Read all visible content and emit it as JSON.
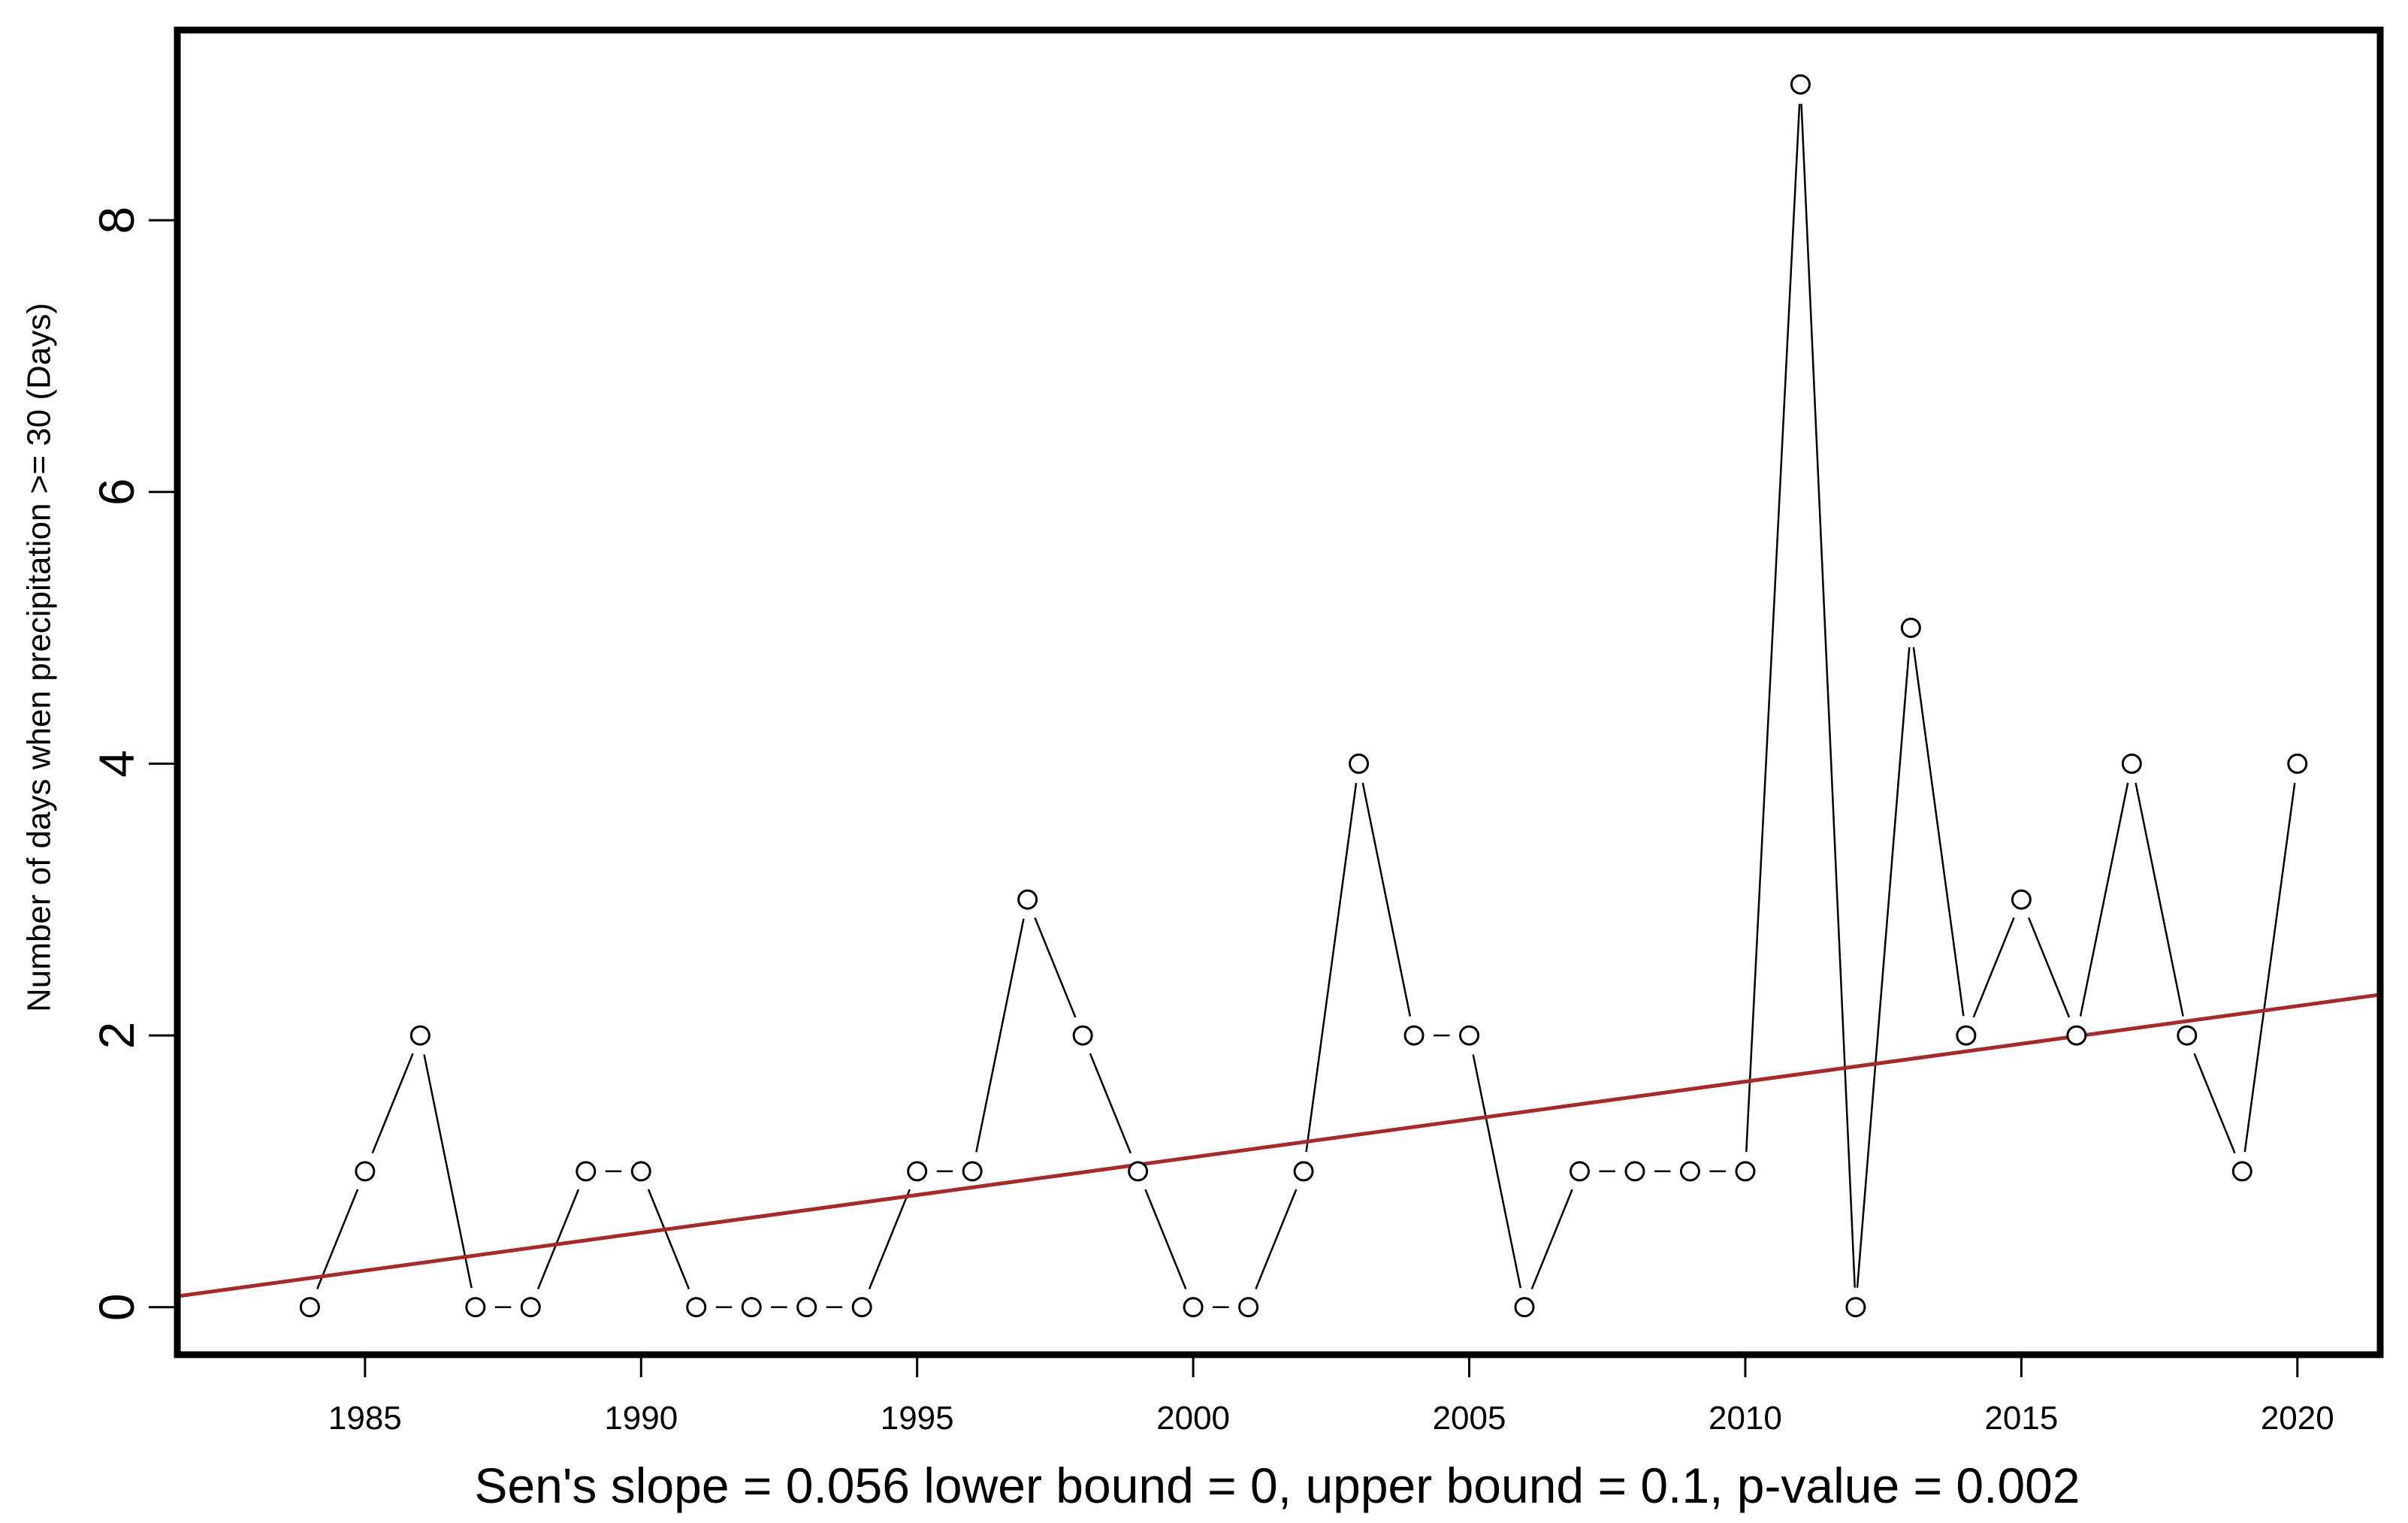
{
  "chart_data": {
    "type": "line",
    "title": "",
    "ylabel": "Number of days when precipitation >= 30  (Days)",
    "xlabel": "",
    "footer": "Sen's slope = 0.056   lower bound = 0,   upper bound = 0.1,   p-value = 0.002",
    "xlim": [
      1981.6,
      2021.5
    ],
    "ylim": [
      -0.35,
      9.4
    ],
    "x_ticks": [
      1985,
      1990,
      1995,
      2000,
      2005,
      2010,
      2015,
      2020
    ],
    "y_ticks": [
      0,
      2,
      4,
      6,
      8
    ],
    "grid": false,
    "series": [
      {
        "x": [
          1984,
          1985,
          1986,
          1987,
          1988,
          1989,
          1990,
          1991,
          1992,
          1993,
          1994,
          1995,
          1996,
          1997,
          1998,
          1999,
          2000,
          2001,
          2002,
          2003,
          2004,
          2005,
          2006,
          2007,
          2008,
          2009,
          2010,
          2011,
          2012,
          2013,
          2014,
          2015,
          2016,
          2017,
          2018,
          2019,
          2020
        ],
        "values": [
          0,
          1,
          2,
          0,
          0,
          1,
          1,
          0,
          0,
          0,
          0,
          1,
          1,
          3,
          2,
          1,
          0,
          0,
          1,
          4,
          2,
          2,
          0,
          1,
          1,
          1,
          1,
          9,
          0,
          5,
          2,
          3,
          2,
          4,
          2,
          1,
          4
        ],
        "marker": "open-circle",
        "color": "#000000"
      }
    ],
    "trend_line": {
      "color": "#a52a2a",
      "x": [
        1981.6,
        2021.5
      ],
      "y": [
        0.08,
        2.3
      ]
    }
  }
}
